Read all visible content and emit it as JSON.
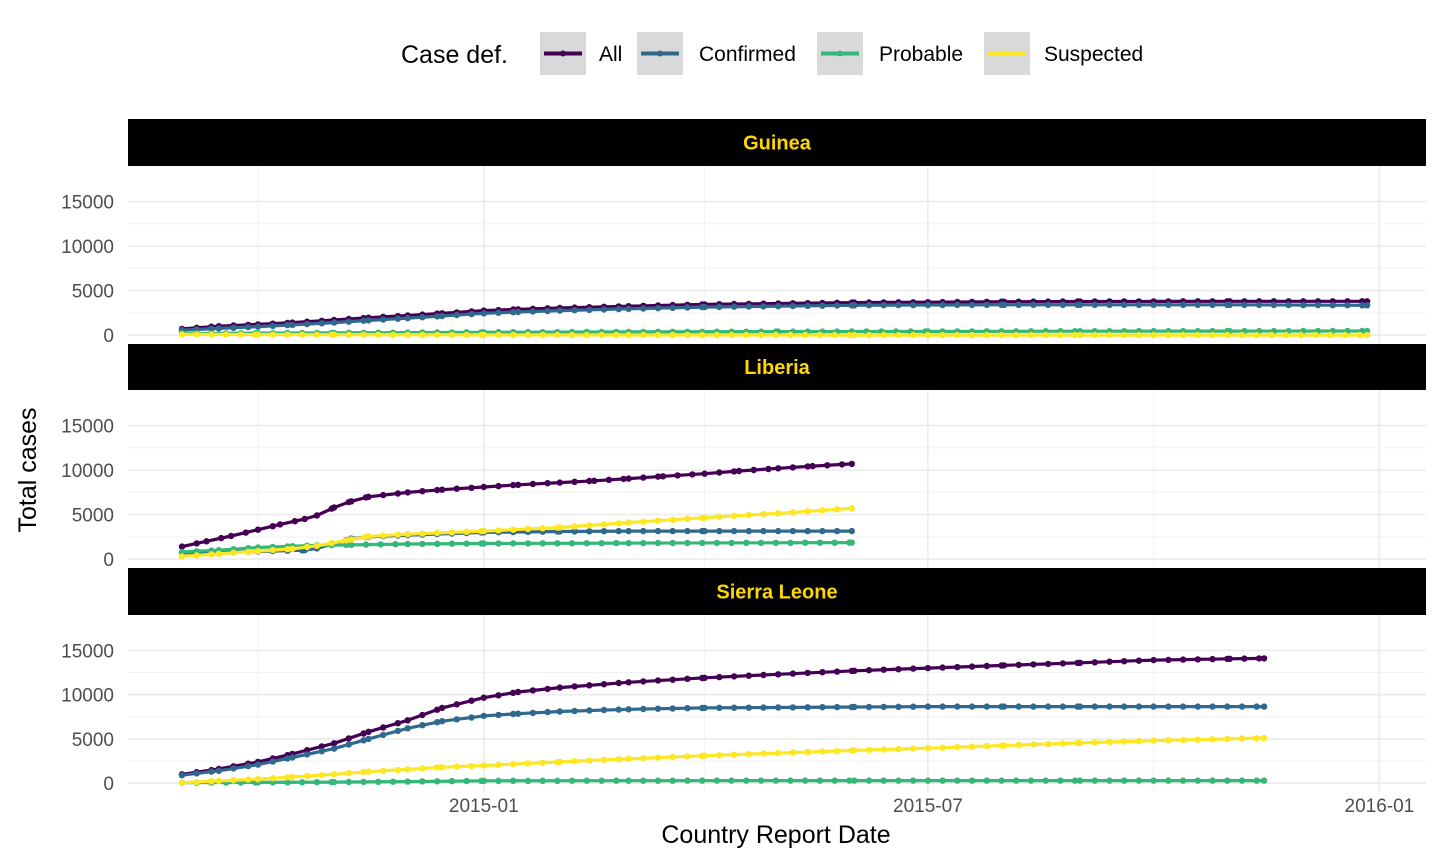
{
  "chart_data": {
    "type": "line",
    "xlabel": "Country Report Date",
    "ylabel": "Total cases",
    "x_range": [
      "2014-08-09",
      "2016-01-20"
    ],
    "y_range": [
      -1000,
      19000
    ],
    "x_ticks": [
      {
        "date": "2015-01-01",
        "label": "2015-01"
      },
      {
        "date": "2015-07-01",
        "label": "2015-07"
      },
      {
        "date": "2016-01-01",
        "label": "2016-01"
      }
    ],
    "x_minor_ticks": [
      "2014-10-01",
      "2015-04-01",
      "2015-10-01"
    ],
    "y_ticks": [
      0,
      5000,
      10000,
      15000
    ],
    "y_minor_ticks": [
      2500,
      7500,
      12500
    ],
    "grid": true,
    "legend": {
      "title": "Case def.",
      "position": "top",
      "entries": [
        {
          "name": "All",
          "color": "#440154"
        },
        {
          "name": "Confirmed",
          "color": "#31688E"
        },
        {
          "name": "Probable",
          "color": "#35B779"
        },
        {
          "name": "Suspected",
          "color": "#FDE725"
        }
      ]
    },
    "strip_style": {
      "background": "#000000",
      "text_color": "#FFD700"
    },
    "panels": [
      {
        "title": "Guinea",
        "series": [
          {
            "name": "All",
            "color": "#440154",
            "points": [
              [
                "2014-08-31",
                700
              ],
              [
                "2014-09-15",
                1000
              ],
              [
                "2014-10-01",
                1200
              ],
              [
                "2014-10-15",
                1400
              ],
              [
                "2014-11-01",
                1700
              ],
              [
                "2014-11-15",
                1950
              ],
              [
                "2014-12-01",
                2200
              ],
              [
                "2014-12-15",
                2450
              ],
              [
                "2015-01-01",
                2750
              ],
              [
                "2015-01-15",
                2900
              ],
              [
                "2015-02-01",
                3050
              ],
              [
                "2015-03-01",
                3250
              ],
              [
                "2015-04-01",
                3450
              ],
              [
                "2015-05-01",
                3550
              ],
              [
                "2015-06-01",
                3650
              ],
              [
                "2015-07-01",
                3700
              ],
              [
                "2015-08-01",
                3750
              ],
              [
                "2015-09-01",
                3780
              ],
              [
                "2015-10-01",
                3790
              ],
              [
                "2015-11-01",
                3800
              ],
              [
                "2015-12-27",
                3800
              ]
            ]
          },
          {
            "name": "Confirmed",
            "color": "#31688E",
            "points": [
              [
                "2014-08-31",
                550
              ],
              [
                "2014-09-15",
                750
              ],
              [
                "2014-10-01",
                950
              ],
              [
                "2014-10-15",
                1150
              ],
              [
                "2014-11-01",
                1400
              ],
              [
                "2014-11-15",
                1650
              ],
              [
                "2014-12-01",
                1900
              ],
              [
                "2014-12-15",
                2150
              ],
              [
                "2015-01-01",
                2450
              ],
              [
                "2015-01-15",
                2600
              ],
              [
                "2015-02-01",
                2750
              ],
              [
                "2015-03-01",
                2950
              ],
              [
                "2015-04-01",
                3150
              ],
              [
                "2015-05-01",
                3250
              ],
              [
                "2015-06-01",
                3350
              ],
              [
                "2015-07-01",
                3380
              ],
              [
                "2015-08-01",
                3400
              ],
              [
                "2015-09-01",
                3400
              ],
              [
                "2015-10-01",
                3400
              ],
              [
                "2015-11-01",
                3400
              ],
              [
                "2015-12-27",
                3350
              ]
            ]
          },
          {
            "name": "Probable",
            "color": "#35B779",
            "points": [
              [
                "2014-08-31",
                180
              ],
              [
                "2014-10-01",
                220
              ],
              [
                "2014-11-01",
                250
              ],
              [
                "2014-12-01",
                280
              ],
              [
                "2015-01-01",
                320
              ],
              [
                "2015-03-01",
                360
              ],
              [
                "2015-05-01",
                390
              ],
              [
                "2015-07-01",
                410
              ],
              [
                "2015-09-01",
                440
              ],
              [
                "2015-11-01",
                450
              ],
              [
                "2015-12-27",
                460
              ]
            ]
          },
          {
            "name": "Suspected",
            "color": "#FDE725",
            "points": [
              [
                "2014-08-31",
                80
              ],
              [
                "2014-10-01",
                60
              ],
              [
                "2014-11-01",
                40
              ],
              [
                "2015-01-01",
                20
              ],
              [
                "2015-03-01",
                10
              ],
              [
                "2015-06-01",
                5
              ],
              [
                "2015-09-01",
                3
              ],
              [
                "2015-12-27",
                0
              ]
            ]
          }
        ]
      },
      {
        "title": "Liberia",
        "series": [
          {
            "name": "All",
            "color": "#440154",
            "points": [
              [
                "2014-08-31",
                1400
              ],
              [
                "2014-09-10",
                2000
              ],
              [
                "2014-09-20",
                2600
              ],
              [
                "2014-10-01",
                3300
              ],
              [
                "2014-10-10",
                3900
              ],
              [
                "2014-10-20",
                4500
              ],
              [
                "2014-10-25",
                4900
              ],
              [
                "2014-11-01",
                5800
              ],
              [
                "2014-11-08",
                6500
              ],
              [
                "2014-11-15",
                7000
              ],
              [
                "2014-12-01",
                7500
              ],
              [
                "2014-12-15",
                7800
              ],
              [
                "2015-01-01",
                8100
              ],
              [
                "2015-01-15",
                8350
              ],
              [
                "2015-02-01",
                8600
              ],
              [
                "2015-02-15",
                8800
              ],
              [
                "2015-03-01",
                9050
              ],
              [
                "2015-03-15",
                9300
              ],
              [
                "2015-04-01",
                9600
              ],
              [
                "2015-04-15",
                9900
              ],
              [
                "2015-05-01",
                10200
              ],
              [
                "2015-05-15",
                10450
              ],
              [
                "2015-05-31",
                10700
              ]
            ]
          },
          {
            "name": "Confirmed",
            "color": "#31688E",
            "points": [
              [
                "2014-08-31",
                700
              ],
              [
                "2014-09-15",
                750
              ],
              [
                "2014-10-01",
                850
              ],
              [
                "2014-10-20",
                1000
              ],
              [
                "2014-10-25",
                1200
              ],
              [
                "2014-11-08",
                2300
              ],
              [
                "2014-11-15",
                2500
              ],
              [
                "2014-12-01",
                2700
              ],
              [
                "2015-01-01",
                3000
              ],
              [
                "2015-02-01",
                3100
              ],
              [
                "2015-03-01",
                3150
              ],
              [
                "2015-04-01",
                3150
              ],
              [
                "2015-05-01",
                3150
              ],
              [
                "2015-05-31",
                3150
              ]
            ]
          },
          {
            "name": "Probable",
            "color": "#35B779",
            "points": [
              [
                "2014-08-31",
                800
              ],
              [
                "2014-09-15",
                1000
              ],
              [
                "2014-10-01",
                1300
              ],
              [
                "2014-10-15",
                1450
              ],
              [
                "2014-10-25",
                1550
              ],
              [
                "2014-11-08",
                1600
              ],
              [
                "2014-12-01",
                1700
              ],
              [
                "2015-01-01",
                1750
              ],
              [
                "2015-03-01",
                1800
              ],
              [
                "2015-05-31",
                1850
              ]
            ]
          },
          {
            "name": "Suspected",
            "color": "#FDE725",
            "points": [
              [
                "2014-08-31",
                300
              ],
              [
                "2014-09-15",
                600
              ],
              [
                "2014-10-01",
                900
              ],
              [
                "2014-10-15",
                1150
              ],
              [
                "2014-10-25",
                1500
              ],
              [
                "2014-11-08",
                2200
              ],
              [
                "2014-11-15",
                2550
              ],
              [
                "2014-12-01",
                2800
              ],
              [
                "2015-01-01",
                3150
              ],
              [
                "2015-02-01",
                3550
              ],
              [
                "2015-03-01",
                4100
              ],
              [
                "2015-04-01",
                4650
              ],
              [
                "2015-05-01",
                5150
              ],
              [
                "2015-05-31",
                5700
              ]
            ]
          }
        ]
      },
      {
        "title": "Sierra Leone",
        "series": [
          {
            "name": "All",
            "color": "#440154",
            "points": [
              [
                "2014-08-31",
                1000
              ],
              [
                "2014-09-15",
                1600
              ],
              [
                "2014-10-01",
                2400
              ],
              [
                "2014-10-15",
                3300
              ],
              [
                "2014-11-01",
                4500
              ],
              [
                "2014-11-15",
                5800
              ],
              [
                "2014-12-01",
                7100
              ],
              [
                "2014-12-15",
                8500
              ],
              [
                "2015-01-01",
                9650
              ],
              [
                "2015-01-15",
                10300
              ],
              [
                "2015-02-01",
                10800
              ],
              [
                "2015-03-01",
                11400
              ],
              [
                "2015-04-01",
                11900
              ],
              [
                "2015-05-01",
                12300
              ],
              [
                "2015-06-01",
                12700
              ],
              [
                "2015-07-01",
                13000
              ],
              [
                "2015-08-01",
                13300
              ],
              [
                "2015-09-01",
                13600
              ],
              [
                "2015-10-01",
                13900
              ],
              [
                "2015-11-01",
                14050
              ],
              [
                "2015-11-15",
                14100
              ]
            ]
          },
          {
            "name": "Confirmed",
            "color": "#31688E",
            "points": [
              [
                "2014-08-31",
                900
              ],
              [
                "2014-09-15",
                1400
              ],
              [
                "2014-10-01",
                2100
              ],
              [
                "2014-10-15",
                2900
              ],
              [
                "2014-11-01",
                3900
              ],
              [
                "2014-11-15",
                5000
              ],
              [
                "2014-12-01",
                6200
              ],
              [
                "2014-12-15",
                7000
              ],
              [
                "2015-01-01",
                7600
              ],
              [
                "2015-01-15",
                7850
              ],
              [
                "2015-02-01",
                8100
              ],
              [
                "2015-03-01",
                8350
              ],
              [
                "2015-04-01",
                8500
              ],
              [
                "2015-05-01",
                8550
              ],
              [
                "2015-06-01",
                8600
              ],
              [
                "2015-07-01",
                8650
              ],
              [
                "2015-08-01",
                8650
              ],
              [
                "2015-09-01",
                8650
              ],
              [
                "2015-10-01",
                8650
              ],
              [
                "2015-11-15",
                8650
              ]
            ]
          },
          {
            "name": "Probable",
            "color": "#35B779",
            "points": [
              [
                "2014-08-31",
                50
              ],
              [
                "2014-10-01",
                80
              ],
              [
                "2014-11-01",
                120
              ],
              [
                "2014-12-01",
                180
              ],
              [
                "2015-01-01",
                260
              ],
              [
                "2015-03-01",
                280
              ],
              [
                "2015-06-01",
                290
              ],
              [
                "2015-09-01",
                290
              ],
              [
                "2015-11-15",
                290
              ]
            ]
          },
          {
            "name": "Suspected",
            "color": "#FDE725",
            "points": [
              [
                "2014-08-31",
                50
              ],
              [
                "2014-09-15",
                250
              ],
              [
                "2014-10-01",
                450
              ],
              [
                "2014-10-15",
                700
              ],
              [
                "2014-11-01",
                1000
              ],
              [
                "2014-11-15",
                1300
              ],
              [
                "2014-12-01",
                1550
              ],
              [
                "2014-12-15",
                1800
              ],
              [
                "2015-01-01",
                2000
              ],
              [
                "2015-02-01",
                2400
              ],
              [
                "2015-03-01",
                2750
              ],
              [
                "2015-04-01",
                3100
              ],
              [
                "2015-05-01",
                3400
              ],
              [
                "2015-06-01",
                3700
              ],
              [
                "2015-07-01",
                3950
              ],
              [
                "2015-08-01",
                4250
              ],
              [
                "2015-09-01",
                4550
              ],
              [
                "2015-10-01",
                4800
              ],
              [
                "2015-11-15",
                5100
              ]
            ]
          }
        ]
      }
    ]
  }
}
